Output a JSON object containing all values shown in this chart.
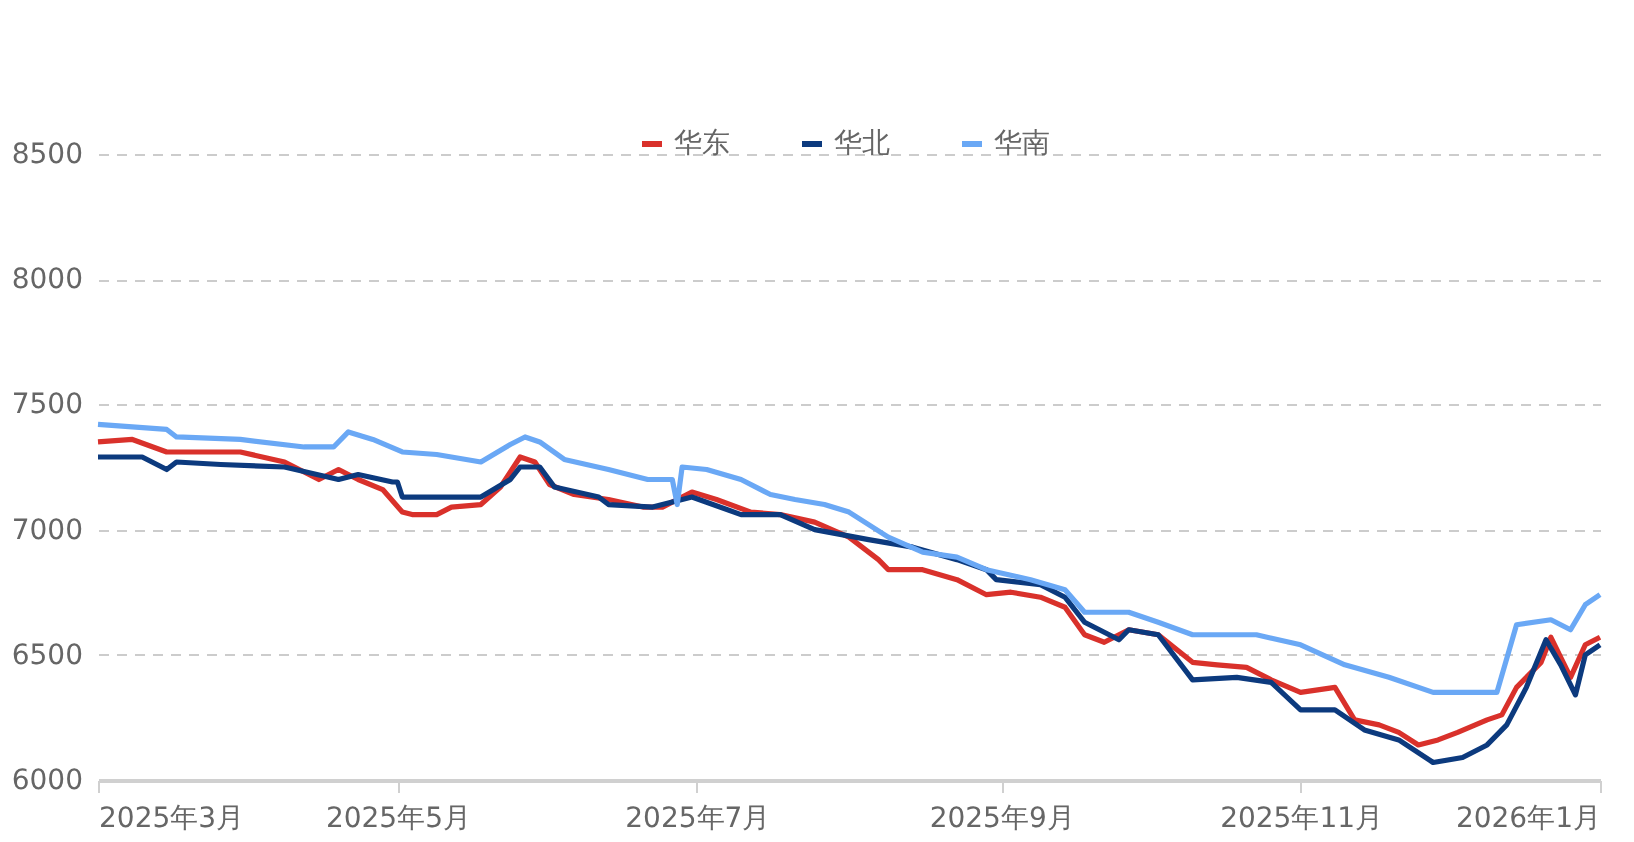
{
  "chart_data": {
    "type": "line",
    "legend": "top",
    "grid": "y",
    "line_style": "solid",
    "marker": "none",
    "xlim": [
      "2025-03-01",
      "2026-01-01"
    ],
    "xticks": [
      {
        "value": "2025-03-01",
        "label": "2025年3月"
      },
      {
        "value": "2025-05-01",
        "label": "2025年5月"
      },
      {
        "value": "2025-07-01",
        "label": "2025年7月"
      },
      {
        "value": "2025-09-01",
        "label": "2025年9月"
      },
      {
        "value": "2025-11-01",
        "label": "2025年11月"
      },
      {
        "value": "2026-01-01",
        "label": "2026年1月"
      }
    ],
    "ylim": [
      6000,
      8500
    ],
    "yticks": [
      6000,
      6500,
      7000,
      7500,
      8000,
      8500
    ],
    "series": [
      {
        "name": "华东",
        "color": "#d9312b",
        "x": [
          "2025-03-01",
          "2025-03-08",
          "2025-03-15",
          "2025-03-21",
          "2025-03-30",
          "2025-04-08",
          "2025-04-15",
          "2025-04-19",
          "2025-04-23",
          "2025-04-28",
          "2025-05-02",
          "2025-05-04",
          "2025-05-09",
          "2025-05-12",
          "2025-05-18",
          "2025-05-22",
          "2025-05-26",
          "2025-05-29",
          "2025-06-01",
          "2025-06-06",
          "2025-06-13",
          "2025-06-20",
          "2025-06-24",
          "2025-06-30",
          "2025-07-05",
          "2025-07-12",
          "2025-07-18",
          "2025-07-25",
          "2025-08-01",
          "2025-08-07",
          "2025-08-09",
          "2025-08-16",
          "2025-08-23",
          "2025-08-29",
          "2025-09-03",
          "2025-09-09",
          "2025-09-14",
          "2025-09-18",
          "2025-09-22",
          "2025-09-27",
          "2025-10-03",
          "2025-10-10",
          "2025-10-15",
          "2025-10-21",
          "2025-10-26",
          "2025-11-01",
          "2025-11-08",
          "2025-11-12",
          "2025-11-17",
          "2025-11-21",
          "2025-11-25",
          "2025-11-29",
          "2025-12-03",
          "2025-12-09",
          "2025-12-12",
          "2025-12-15",
          "2025-12-20",
          "2025-12-22",
          "2025-12-26",
          "2025-12-29",
          "2026-01-01"
        ],
        "values": [
          7350,
          7360,
          7310,
          7310,
          7310,
          7270,
          7200,
          7240,
          7200,
          7160,
          7070,
          7060,
          7060,
          7090,
          7100,
          7170,
          7290,
          7270,
          7180,
          7140,
          7120,
          7090,
          7090,
          7150,
          7120,
          7070,
          7060,
          7030,
          6970,
          6880,
          6840,
          6840,
          6800,
          6740,
          6750,
          6730,
          6690,
          6580,
          6550,
          6600,
          6580,
          6470,
          6460,
          6450,
          6400,
          6350,
          6370,
          6240,
          6220,
          6190,
          6140,
          6160,
          6190,
          6240,
          6260,
          6370,
          6470,
          6570,
          6410,
          6540,
          6570
        ]
      },
      {
        "name": "华北",
        "color": "#0c3a7e",
        "x": [
          "2025-03-01",
          "2025-03-10",
          "2025-03-15",
          "2025-03-17",
          "2025-03-26",
          "2025-04-08",
          "2025-04-19",
          "2025-04-23",
          "2025-04-30",
          "2025-05-01",
          "2025-05-02",
          "2025-05-18",
          "2025-05-24",
          "2025-05-26",
          "2025-05-30",
          "2025-06-02",
          "2025-06-11",
          "2025-06-13",
          "2025-06-22",
          "2025-06-30",
          "2025-07-10",
          "2025-07-18",
          "2025-07-25",
          "2025-08-05",
          "2025-08-14",
          "2025-08-23",
          "2025-08-29",
          "2025-08-31",
          "2025-09-09",
          "2025-09-14",
          "2025-09-18",
          "2025-09-25",
          "2025-09-27",
          "2025-10-03",
          "2025-10-10",
          "2025-10-19",
          "2025-10-26",
          "2025-11-01",
          "2025-11-08",
          "2025-11-14",
          "2025-11-21",
          "2025-11-28",
          "2025-12-04",
          "2025-12-09",
          "2025-12-13",
          "2025-12-17",
          "2025-12-21",
          "2025-12-24",
          "2025-12-27",
          "2025-12-29",
          "2026-01-01"
        ],
        "values": [
          7290,
          7290,
          7240,
          7270,
          7260,
          7250,
          7200,
          7220,
          7190,
          7190,
          7130,
          7130,
          7200,
          7250,
          7250,
          7170,
          7130,
          7100,
          7090,
          7130,
          7060,
          7060,
          7000,
          6960,
          6930,
          6880,
          6840,
          6800,
          6780,
          6730,
          6630,
          6560,
          6600,
          6580,
          6400,
          6410,
          6390,
          6280,
          6280,
          6200,
          6160,
          6070,
          6090,
          6140,
          6220,
          6370,
          6560,
          6460,
          6340,
          6500,
          6540
        ]
      },
      {
        "name": "华南",
        "color": "#6aa8f5",
        "x": [
          "2025-03-01",
          "2025-03-15",
          "2025-03-17",
          "2025-03-30",
          "2025-04-12",
          "2025-04-18",
          "2025-04-21",
          "2025-04-26",
          "2025-05-02",
          "2025-05-09",
          "2025-05-18",
          "2025-05-24",
          "2025-05-27",
          "2025-05-30",
          "2025-06-04",
          "2025-06-13",
          "2025-06-21",
          "2025-06-26",
          "2025-06-27",
          "2025-06-28",
          "2025-07-03",
          "2025-07-10",
          "2025-07-16",
          "2025-07-21",
          "2025-07-27",
          "2025-08-01",
          "2025-08-09",
          "2025-08-16",
          "2025-08-23",
          "2025-08-29",
          "2025-09-07",
          "2025-09-14",
          "2025-09-18",
          "2025-09-27",
          "2025-10-03",
          "2025-10-10",
          "2025-10-23",
          "2025-11-01",
          "2025-11-10",
          "2025-11-19",
          "2025-11-28",
          "2025-12-06",
          "2025-12-11",
          "2025-12-15",
          "2025-12-22",
          "2025-12-26",
          "2025-12-29",
          "2026-01-01"
        ],
        "values": [
          7420,
          7400,
          7370,
          7360,
          7330,
          7330,
          7390,
          7360,
          7310,
          7300,
          7270,
          7340,
          7370,
          7350,
          7280,
          7240,
          7200,
          7200,
          7100,
          7250,
          7240,
          7200,
          7140,
          7120,
          7100,
          7070,
          6970,
          6910,
          6890,
          6840,
          6800,
          6760,
          6670,
          6670,
          6630,
          6580,
          6580,
          6540,
          6460,
          6410,
          6350,
          6350,
          6350,
          6620,
          6640,
          6600,
          6700,
          6740
        ]
      }
    ]
  }
}
